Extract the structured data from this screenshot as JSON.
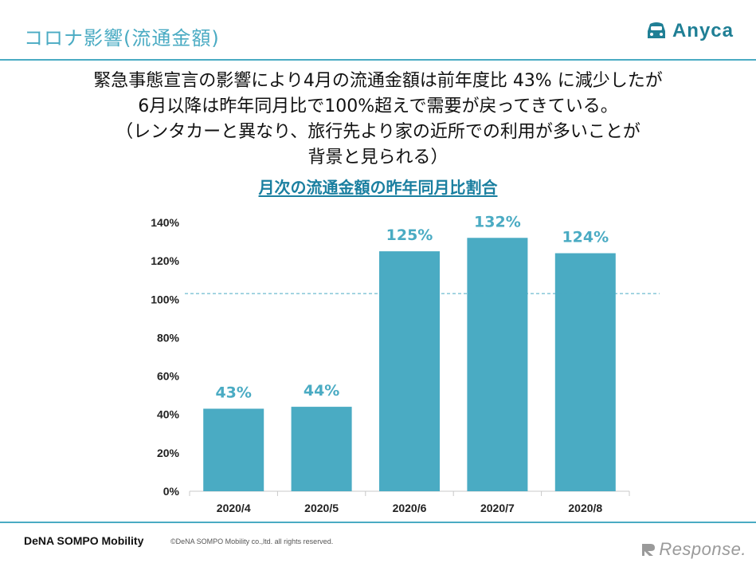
{
  "header": {
    "title": "コロナ影響(流通金額)",
    "brand_name": "Anyca"
  },
  "summary_lines": [
    "緊急事態宣言の影響により4月の流通金額は前年度比 43% に減少したが",
    "6月以降は昨年同月比で100%超えで需要が戻ってきている。",
    "（レンタカーと異なり、旅行先より家の近所での利用が多いことが",
    "背景と見られる）"
  ],
  "chart_data": {
    "type": "bar",
    "title": "月次の流通金額の昨年同月比割合",
    "categories": [
      "2020/4",
      "2020/5",
      "2020/6",
      "2020/7",
      "2020/8"
    ],
    "values": [
      43,
      44,
      125,
      132,
      124
    ],
    "data_labels": [
      "43%",
      "44%",
      "125%",
      "132%",
      "124%"
    ],
    "yticks": [
      "0%",
      "20%",
      "40%",
      "60%",
      "80%",
      "100%",
      "120%",
      "140%"
    ],
    "ylim": [
      0,
      140
    ],
    "reference_line": 103,
    "xlabel": "",
    "ylabel": "",
    "bar_color": "#4aabc3"
  },
  "footer": {
    "company": "DeNA SOMPO Mobility",
    "copyright": "©DeNA SOMPO Mobility co.,ltd. all rights reserved.",
    "watermark": "Response."
  },
  "colors": {
    "accent": "#4aabc3",
    "brand": "#1f7f95"
  }
}
